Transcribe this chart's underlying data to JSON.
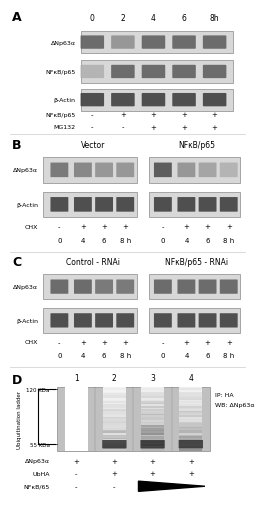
{
  "fig_width": 2.4,
  "fig_height": 5.0,
  "bg_color": "#ffffff",
  "panel_A": {
    "label": "A",
    "time_labels": [
      "0",
      "2",
      "4",
      "6",
      "8h"
    ],
    "row_labels": [
      "ΔNp63α",
      "NFκB/p65",
      "β-Actin"
    ],
    "bottom_labels": [
      "NFκB/p65",
      "MG132"
    ],
    "bottom_signs": [
      [
        "-",
        "+",
        "+",
        "+",
        "+"
      ],
      [
        "-",
        "-",
        "+",
        "+",
        "+"
      ]
    ],
    "band_colors": {
      "row0": [
        "#606060",
        "#909090",
        "#606060",
        "#606060",
        "#606060"
      ],
      "row1": [
        "#b0b0b0",
        "#606060",
        "#606060",
        "#606060",
        "#606060"
      ],
      "row2": [
        "#404040",
        "#404040",
        "#404040",
        "#404040",
        "#404040"
      ]
    }
  },
  "panel_B": {
    "label": "B",
    "group_labels": [
      "Vector",
      "NFκB/p65"
    ],
    "row_labels": [
      "ΔNp63α",
      "β-Actin"
    ],
    "bottom_label": "CHX",
    "time_labels": [
      "0",
      "4",
      "6",
      "8 h"
    ],
    "chx_signs": [
      "-",
      "+",
      "+",
      "+"
    ],
    "band_colors_left": {
      "row0": [
        "#707070",
        "#808080",
        "#909090",
        "#909090"
      ],
      "row1": [
        "#404040",
        "#404040",
        "#404040",
        "#404040"
      ]
    },
    "band_colors_right": {
      "row0": [
        "#505050",
        "#909090",
        "#a0a0a0",
        "#b0b0b0"
      ],
      "row1": [
        "#404040",
        "#404040",
        "#404040",
        "#404040"
      ]
    }
  },
  "panel_C": {
    "label": "C",
    "group_labels": [
      "Control - RNAi",
      "NFκB/p65 - RNAi"
    ],
    "row_labels": [
      "ΔNp63α",
      "β-Actin"
    ],
    "bottom_label": "CHX",
    "time_labels": [
      "0",
      "4",
      "6",
      "8 h"
    ],
    "chx_signs": [
      "-",
      "+",
      "+",
      "+"
    ],
    "band_colors_left": {
      "row0": [
        "#606060",
        "#606060",
        "#707070",
        "#707070"
      ],
      "row1": [
        "#404040",
        "#404040",
        "#404040",
        "#404040"
      ]
    },
    "band_colors_right": {
      "row0": [
        "#606060",
        "#606060",
        "#606060",
        "#606060"
      ],
      "row1": [
        "#404040",
        "#404040",
        "#404040",
        "#404040"
      ]
    }
  },
  "panel_D": {
    "label": "D",
    "lane_labels": [
      "1",
      "2",
      "3",
      "4"
    ],
    "kda_labels": [
      "120 KDa",
      "55 KDa"
    ],
    "y_label": "Ubiquitination ladder",
    "right_labels": [
      "IP: HA",
      "WB: ΔNp63α"
    ],
    "bottom_labels": [
      "ΔNp63α",
      "UbHA",
      "NFκB/65"
    ],
    "bottom_signs": [
      [
        "+",
        "+",
        "+",
        "+"
      ],
      [
        "-",
        "+",
        "+",
        "+"
      ],
      [
        "-",
        "-",
        "",
        ""
      ]
    ],
    "gel_bg": "#c8c8c8"
  }
}
